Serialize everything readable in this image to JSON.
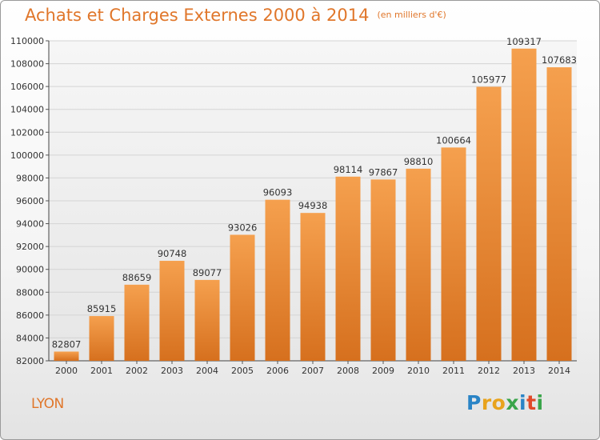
{
  "chart_data": {
    "type": "bar",
    "title": "Achats et Charges Externes 2000 à 2014",
    "subtitle": "(en milliers d'€)",
    "xlabel": "",
    "ylabel": "",
    "categories": [
      "2000",
      "2001",
      "2002",
      "2003",
      "2004",
      "2005",
      "2006",
      "2007",
      "2008",
      "2009",
      "2010",
      "2011",
      "2012",
      "2013",
      "2014"
    ],
    "values": [
      82807,
      85915,
      88659,
      90748,
      89077,
      93026,
      96093,
      94938,
      98114,
      97867,
      98810,
      100664,
      105977,
      109317,
      107683
    ],
    "ylim": [
      82000,
      110000
    ],
    "yticks": [
      82000,
      84000,
      86000,
      88000,
      90000,
      92000,
      94000,
      96000,
      98000,
      100000,
      102000,
      104000,
      106000,
      108000,
      110000
    ],
    "grid": true,
    "legend": "none",
    "colors": {
      "bar_top": "#f5a04e",
      "bar_bottom": "#d6701e",
      "title": "#e0762a",
      "grid": "#d4d4d4",
      "plot_bg": "#e8e8e8"
    }
  },
  "footer": {
    "city": "LYON",
    "brand": "Proxiti",
    "brand_letters": [
      {
        "ch": "P",
        "color": "#2a84c6"
      },
      {
        "ch": "r",
        "color": "#e8a31d"
      },
      {
        "ch": "o",
        "color": "#e8a31d"
      },
      {
        "ch": "x",
        "color": "#3aa54a"
      },
      {
        "ch": "i",
        "color": "#2a84c6"
      },
      {
        "ch": "t",
        "color": "#e04a2a"
      },
      {
        "ch": "i",
        "color": "#3aa54a"
      }
    ]
  }
}
